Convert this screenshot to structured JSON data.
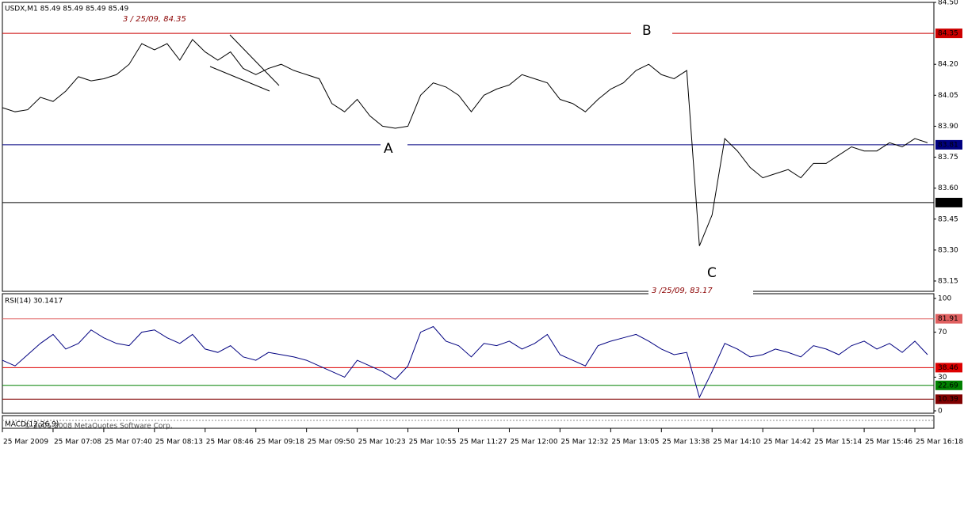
{
  "header": "USDX,M1  85.49 85.49 85.49 85.49",
  "annotations": {
    "high_note": "3 / 25/09,  84.35",
    "low_note": "3 /25/09,  83.17",
    "a": "A",
    "b": "B",
    "c": "C"
  },
  "macd": {
    "title": "MACD(12,26,9)",
    "copyright": "© 2001-2008 MetaQuotes Software Corp."
  },
  "chart_data": [
    {
      "type": "line",
      "x": [
        0,
        8,
        16,
        24,
        32,
        40,
        48,
        56,
        64,
        72,
        80,
        88,
        96,
        104,
        112,
        120,
        128,
        136,
        144,
        152,
        160,
        168,
        176,
        184,
        192,
        200,
        208,
        216,
        224,
        232,
        240,
        248,
        256,
        264,
        272,
        280,
        288,
        296,
        304,
        312,
        320,
        328,
        336,
        344,
        352,
        360,
        368,
        376,
        384,
        392,
        400,
        408,
        416,
        424,
        432,
        440,
        448,
        456,
        464,
        472,
        480,
        488,
        496,
        504,
        512,
        520,
        528,
        536,
        544,
        552,
        560,
        568,
        576,
        584
      ],
      "series": [
        {
          "color": "#000000",
          "values": [
            83.99,
            83.97,
            83.98,
            84.04,
            84.02,
            84.07,
            84.14,
            84.12,
            84.13,
            84.15,
            84.2,
            84.3,
            84.27,
            84.3,
            84.22,
            84.32,
            84.26,
            84.22,
            84.26,
            84.18,
            84.15,
            84.18,
            84.2,
            84.17,
            84.15,
            84.13,
            84.01,
            83.97,
            84.03,
            83.95,
            83.9,
            83.89,
            83.9,
            84.05,
            84.11,
            84.09,
            84.05,
            83.97,
            84.05,
            84.08,
            84.1,
            84.15,
            84.13,
            84.11,
            84.03,
            84.01,
            83.97,
            84.03,
            84.08,
            84.11,
            84.17,
            84.2,
            84.15,
            84.13,
            84.17,
            83.32,
            83.47,
            83.84,
            83.78,
            83.7,
            83.65,
            83.67,
            83.69,
            83.65,
            83.72,
            83.72,
            83.76,
            83.8,
            83.78,
            83.78,
            83.82,
            83.8,
            83.84,
            83.82
          ]
        }
      ],
      "xlim": [
        0,
        588
      ],
      "xticks": [
        {
          "value": 0,
          "label": "25 Mar 2009"
        },
        {
          "value": 32,
          "label": "25 Mar 07:08"
        },
        {
          "value": 64,
          "label": "25 Mar 07:40"
        },
        {
          "value": 96,
          "label": "25 Mar 08:13"
        },
        {
          "value": 128,
          "label": "25 Mar 08:46"
        },
        {
          "value": 160,
          "label": "25 Mar 09:18"
        },
        {
          "value": 192,
          "label": "25 Mar 09:50"
        },
        {
          "value": 224,
          "label": "25 Mar 10:23"
        },
        {
          "value": 256,
          "label": "25 Mar 10:55"
        },
        {
          "value": 288,
          "label": "25 Mar 11:27"
        },
        {
          "value": 320,
          "label": "25 Mar 12:00"
        },
        {
          "value": 352,
          "label": "25 Mar 12:32"
        },
        {
          "value": 384,
          "label": "25 Mar 13:05"
        },
        {
          "value": 416,
          "label": "25 Mar 13:38"
        },
        {
          "value": 448,
          "label": "25 Mar 14:10"
        },
        {
          "value": 480,
          "label": "25 Mar 14:42"
        },
        {
          "value": 512,
          "label": "25 Mar 15:14"
        },
        {
          "value": 544,
          "label": "25 Mar 15:46"
        },
        {
          "value": 576,
          "label": "25 Mar 16:18"
        }
      ],
      "ylim": [
        83.1,
        84.5
      ],
      "yticks": [
        {
          "value": 84.5,
          "label": "84.50"
        },
        {
          "value": 84.2,
          "label": "84.20"
        },
        84.05,
        {
          "value": 83.9,
          "label": "83.90"
        },
        83.75,
        {
          "value": 83.6,
          "label": "83.60"
        },
        83.45,
        {
          "value": 83.3,
          "label": "83.30"
        },
        83.15
      ],
      "levels": [
        {
          "value": 84.35,
          "color": "#cc0000"
        },
        {
          "value": 83.81,
          "color": "#000080"
        },
        {
          "value": 83.53,
          "color": "#000000"
        }
      ]
    },
    {
      "type": "line",
      "title": "RSI(14) 30.1417",
      "series": [
        {
          "color": "#000080",
          "values": [
            45,
            40,
            50,
            60,
            68,
            55,
            60,
            72,
            65,
            60,
            58,
            70,
            72,
            65,
            60,
            68,
            55,
            52,
            58,
            48,
            45,
            52,
            50,
            48,
            45,
            40,
            35,
            30,
            45,
            40,
            35,
            28,
            40,
            70,
            75,
            62,
            58,
            48,
            60,
            58,
            62,
            55,
            60,
            68,
            50,
            45,
            40,
            58,
            62,
            65,
            68,
            62,
            55,
            50,
            52,
            12,
            35,
            60,
            55,
            48,
            50,
            55,
            52,
            48,
            58,
            55,
            50,
            58,
            62,
            55,
            60,
            52,
            62,
            50
          ]
        }
      ],
      "ylim": [
        0,
        100
      ],
      "yticks": [
        100,
        70,
        30,
        0
      ],
      "levels": [
        {
          "value": 81.91,
          "color": "#e06060"
        },
        {
          "value": 38.46,
          "color": "#dd0000"
        },
        {
          "value": 22.69,
          "color": "#008000"
        },
        {
          "value": 10.39,
          "color": "#800000"
        }
      ]
    }
  ]
}
